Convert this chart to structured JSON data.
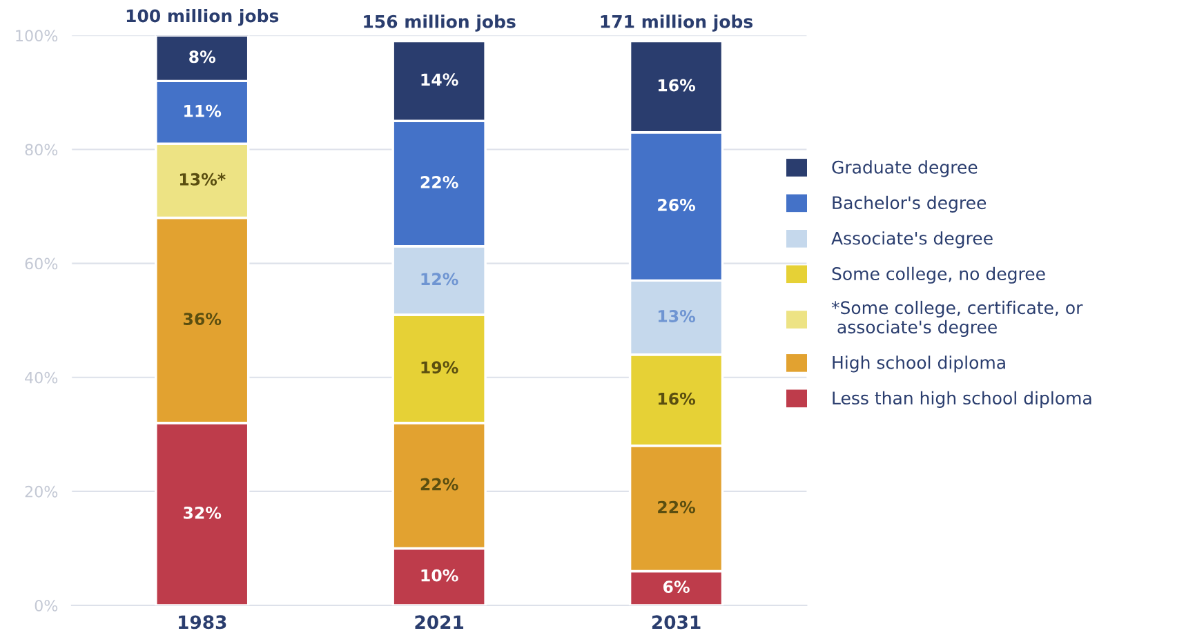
{
  "chart_data": {
    "type": "bar",
    "stacked": true,
    "categories": [
      "1983",
      "2021",
      "2031"
    ],
    "annotations": [
      {
        "text": "100 million jobs",
        "x": "1983",
        "y": 100
      },
      {
        "text": "156 million jobs",
        "x": "2021",
        "y": 99
      },
      {
        "text": "171 million jobs",
        "x": "2031",
        "y": 99
      }
    ],
    "series": [
      {
        "name": "Less than high school diploma",
        "color": "#be3c4b",
        "values": [
          32,
          10,
          6
        ],
        "value_labels": [
          "32%",
          "10%",
          "6%"
        ]
      },
      {
        "name": "High school diploma",
        "color": "#e2a230",
        "values": [
          36,
          22,
          22
        ],
        "value_labels": [
          "36%",
          "22%",
          "22%"
        ]
      },
      {
        "name": "*Some college, certificate, or associate's degree",
        "color": "#ede384",
        "values": [
          13,
          null,
          null
        ],
        "value_labels": [
          "13%*",
          null,
          null
        ]
      },
      {
        "name": "Some college, no degree",
        "color": "#e6d136",
        "values": [
          null,
          19,
          16
        ],
        "value_labels": [
          null,
          "19%",
          "16%"
        ]
      },
      {
        "name": "Associate's degree",
        "color": "#c5d8ec",
        "values": [
          null,
          12,
          13
        ],
        "value_labels": [
          null,
          "12%",
          "13%"
        ]
      },
      {
        "name": "Bachelor's degree",
        "color": "#4472c8",
        "values": [
          11,
          22,
          26
        ],
        "value_labels": [
          "11%",
          "22%",
          "26%"
        ]
      },
      {
        "name": "Graduate degree",
        "color": "#2a3d6e",
        "values": [
          8,
          14,
          16
        ],
        "value_labels": [
          "8%",
          "14%",
          "16%"
        ]
      }
    ],
    "ylim": [
      0,
      100
    ],
    "yticks": [
      {
        "value": 0,
        "label": "0%"
      },
      {
        "value": 20,
        "label": "20%"
      },
      {
        "value": 40,
        "label": "40%"
      },
      {
        "value": 60,
        "label": "60%"
      },
      {
        "value": 80,
        "label": "80%"
      },
      {
        "value": 100,
        "label": "100%"
      }
    ],
    "grid": "y",
    "legend": "right"
  }
}
